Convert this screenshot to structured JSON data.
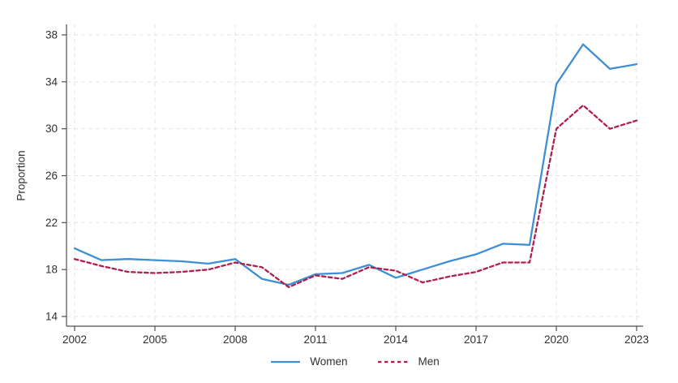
{
  "chart_data": {
    "type": "line",
    "title": "",
    "xlabel": "",
    "ylabel": "Proportion",
    "x": [
      2002,
      2003,
      2004,
      2005,
      2006,
      2007,
      2008,
      2009,
      2010,
      2011,
      2012,
      2013,
      2014,
      2015,
      2016,
      2017,
      2018,
      2019,
      2020,
      2021,
      2022,
      2023
    ],
    "series": [
      {
        "name": "Women",
        "style": "solid",
        "color": "#3e8fd4",
        "values": [
          19.8,
          18.8,
          18.9,
          18.8,
          18.7,
          18.5,
          18.9,
          17.2,
          16.7,
          17.6,
          17.7,
          18.4,
          17.3,
          18.0,
          18.7,
          19.3,
          20.2,
          20.1,
          33.8,
          37.2,
          35.1,
          35.5
        ]
      },
      {
        "name": "Men",
        "style": "dashed",
        "color": "#b0204e",
        "values": [
          18.9,
          18.3,
          17.8,
          17.7,
          17.8,
          18.0,
          18.6,
          18.2,
          16.5,
          17.5,
          17.2,
          18.2,
          17.9,
          16.9,
          17.4,
          17.8,
          18.6,
          18.6,
          30.0,
          32.0,
          30.0,
          30.7
        ]
      }
    ],
    "xlim": [
      2002,
      2023
    ],
    "ylim": [
      14,
      38
    ],
    "xticks": [
      2002,
      2005,
      2008,
      2011,
      2014,
      2017,
      2020,
      2023
    ],
    "yticks": [
      14,
      18,
      22,
      26,
      30,
      34,
      38
    ],
    "grid": "dashed-both-axes",
    "grid_color": "#e5e5e5",
    "axis_color": "#515151",
    "text_color": "#303030",
    "background_color": "#ffffff",
    "legend_position": "bottom-center"
  }
}
